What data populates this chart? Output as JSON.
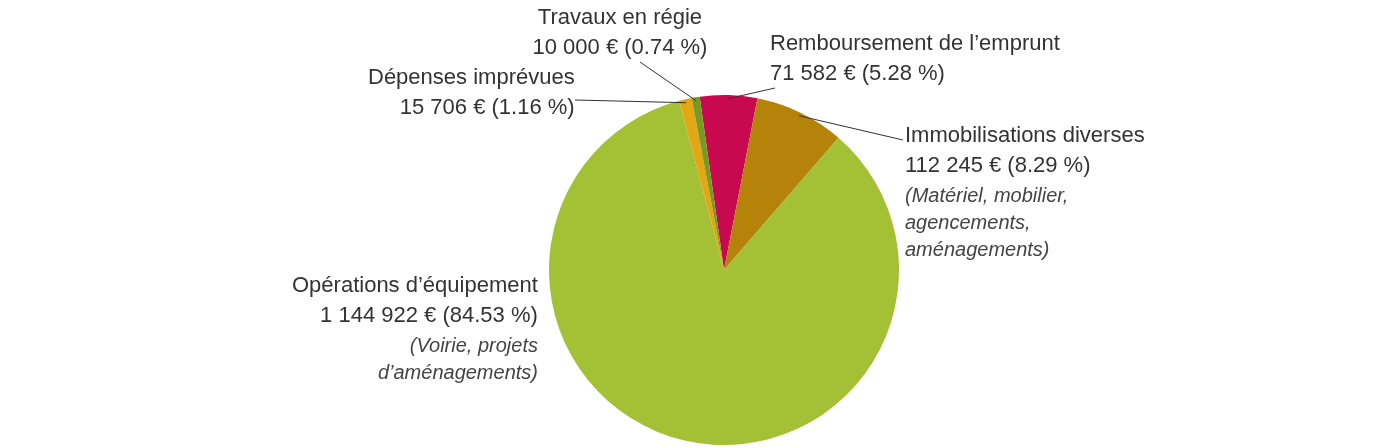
{
  "chart_data": {
    "type": "pie",
    "categories": [
      "Remboursement de l’emprunt",
      "Immobilisations diverses",
      "Opérations d’équipement",
      "Dépenses imprévues",
      "Travaux en régie"
    ],
    "values": [
      71582,
      112245,
      1144922,
      15706,
      10000
    ],
    "value_labels": [
      "71 582 € (5.28 %)",
      "112 245 € (8.29 %)",
      "1 144 922 € (84.53 %)",
      "15 706 € (1.16 %)",
      "10 000 € (0.74 %)"
    ],
    "colors": [
      "#c8094f",
      "#b5820a",
      "#a4c034",
      "#e3a614",
      "#789a24"
    ],
    "annotations": [
      "(Matériel, mobilier, agencements, aménagements)",
      "(Voirie, projets d’aménagements)"
    ],
    "legend": false
  }
}
